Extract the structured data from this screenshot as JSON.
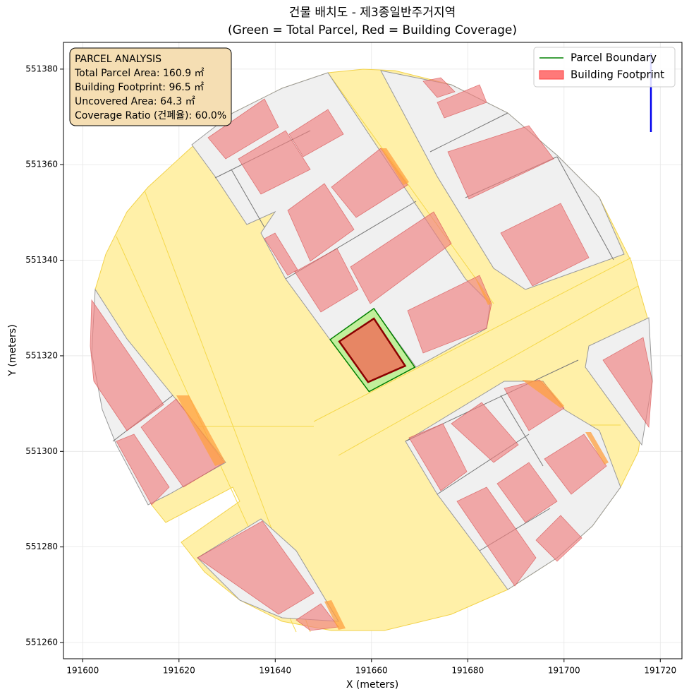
{
  "chart_data": {
    "type": "polygons",
    "title": [
      "건물 배치도 - 제3종일반주거지역",
      "(Green = Total Parcel, Red = Building Coverage)"
    ],
    "x_label": "X (meters)",
    "y_label": "Y (meters)",
    "xlim": [
      191596,
      191724.5
    ],
    "ylim": [
      551256.6,
      551385.6
    ],
    "xticks": [
      191600,
      191620,
      191640,
      191660,
      191680,
      191700,
      191720
    ],
    "yticks": [
      551260,
      551280,
      551300,
      551320,
      551340,
      551360,
      551380
    ],
    "grid": true,
    "legend": "upper right",
    "series": [
      {
        "name": "Parcel Boundary",
        "color": "#008000",
        "fill": "#90ee90",
        "x": [
          191651.4,
          191660.5,
          191669.0,
          191659.5
        ],
        "y": [
          551323.4,
          551329.9,
          551317.6,
          551312.5
        ]
      },
      {
        "name": "Building Footprint",
        "color": "#8b0000",
        "fill": "#ff4040",
        "x": [
          191653.3,
          191660.5,
          191667.0,
          191659.3
        ],
        "y": [
          551323.0,
          551327.8,
          551317.9,
          551314.5
        ]
      }
    ],
    "annotation": [
      "PARCEL ANALYSIS",
      "Total Parcel Area: 160.9 ㎡",
      "Building Footprint: 96.5 ㎡",
      "Uncovered Area: 64.3 ㎡",
      "Coverage Ratio (건폐율): 60.0%"
    ]
  }
}
